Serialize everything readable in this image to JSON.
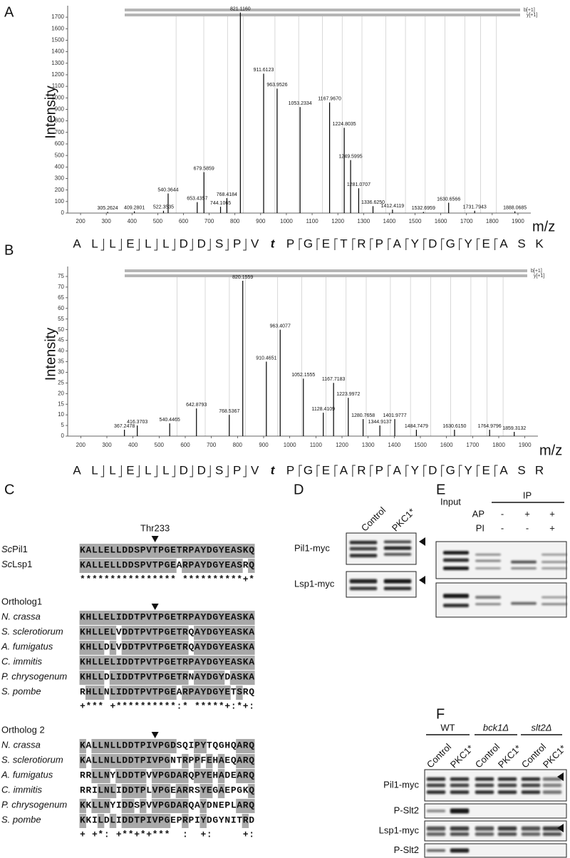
{
  "panels": {
    "A": {
      "label": "A",
      "ylabel": "Intensity",
      "xlabel": "m/z",
      "ion_labels": [
        "b[+1]",
        "y[+1]"
      ],
      "xlim": [
        150,
        1950
      ],
      "xticks": [
        200,
        300,
        400,
        500,
        600,
        700,
        800,
        900,
        1000,
        1100,
        1200,
        1300,
        1400,
        1500,
        1600,
        1700,
        1800,
        1900
      ],
      "ylim": [
        0,
        1750
      ],
      "yticks": [
        0,
        100,
        200,
        300,
        400,
        500,
        600,
        700,
        800,
        900,
        1000,
        1100,
        1200,
        1300,
        1400,
        1500,
        1600,
        1700
      ],
      "peaks": [
        {
          "mz": 305.2624,
          "label": "305.2624",
          "intensity": 10
        },
        {
          "mz": 409.2801,
          "label": "409.2801",
          "intensity": 15
        },
        {
          "mz": 522.3535,
          "label": "522.3535",
          "intensity": 20
        },
        {
          "mz": 540.3644,
          "label": "540.3644",
          "intensity": 170
        },
        {
          "mz": 653.4357,
          "label": "653.4357",
          "intensity": 95
        },
        {
          "mz": 679.5859,
          "label": "679.5859",
          "intensity": 355
        },
        {
          "mz": 744.1065,
          "label": "744.1065",
          "intensity": 55
        },
        {
          "mz": 768.4184,
          "label": "768.4184",
          "intensity": 130
        },
        {
          "mz": 821.116,
          "label": "821.1160",
          "intensity": 1740
        },
        {
          "mz": 911.6123,
          "label": "911.6123",
          "intensity": 1210
        },
        {
          "mz": 963.9526,
          "label": "963.9526",
          "intensity": 1080
        },
        {
          "mz": 1053.2334,
          "label": "1053.2334",
          "intensity": 920
        },
        {
          "mz": 1167.967,
          "label": "1167.9670",
          "intensity": 960
        },
        {
          "mz": 1224.8035,
          "label": "1224.8035",
          "intensity": 740
        },
        {
          "mz": 1249.5995,
          "label": "1249.5995",
          "intensity": 460
        },
        {
          "mz": 1281.0707,
          "label": "1281.0707",
          "intensity": 215
        },
        {
          "mz": 1336.625,
          "label": "1336.6250",
          "intensity": 60
        },
        {
          "mz": 1412.4119,
          "label": "1412.4119",
          "intensity": 30
        },
        {
          "mz": 1532.6959,
          "label": "1532.6959",
          "intensity": 10
        },
        {
          "mz": 1630.6566,
          "label": "1630.6566",
          "intensity": 90
        },
        {
          "mz": 1731.7943,
          "label": "1731.7943",
          "intensity": 20
        },
        {
          "mz": 1888.0685,
          "label": "1888.0685",
          "intensity": 15
        }
      ],
      "sequence": [
        "A",
        "L",
        "L",
        "E",
        "L",
        "L",
        "D",
        "D",
        "S",
        "P",
        "V",
        "t",
        "P",
        "G",
        "E",
        "T",
        "R",
        "P",
        "A",
        "Y",
        "D",
        "G",
        "Y",
        "E",
        "A",
        "S",
        "K"
      ]
    },
    "B": {
      "label": "B",
      "ylabel": "Intensity",
      "xlabel": "m/z",
      "ion_labels": [
        "b[+1]",
        "y[+1]"
      ],
      "xlim": [
        150,
        1950
      ],
      "xticks": [
        200,
        300,
        400,
        500,
        600,
        700,
        800,
        900,
        1000,
        1100,
        1200,
        1300,
        1400,
        1500,
        1600,
        1700,
        1800,
        1900
      ],
      "ylim": [
        0,
        77
      ],
      "yticks": [
        0,
        5,
        10,
        15,
        20,
        25,
        30,
        35,
        40,
        45,
        50,
        55,
        60,
        65,
        70,
        75
      ],
      "peaks": [
        {
          "mz": 367.2478,
          "label": "367.2478",
          "intensity": 3
        },
        {
          "mz": 416.3703,
          "label": "416.3703",
          "intensity": 5
        },
        {
          "mz": 540.4465,
          "label": "540.4465",
          "intensity": 6
        },
        {
          "mz": 642.8793,
          "label": "642.8793",
          "intensity": 13
        },
        {
          "mz": 768.5367,
          "label": "768.5367",
          "intensity": 10
        },
        {
          "mz": 820.1559,
          "label": "820.1559",
          "intensity": 73
        },
        {
          "mz": 910.4651,
          "label": "910.4651",
          "intensity": 35
        },
        {
          "mz": 963.4077,
          "label": "963.4077",
          "intensity": 50
        },
        {
          "mz": 1052.1555,
          "label": "1052.1555",
          "intensity": 27
        },
        {
          "mz": 1128.4109,
          "label": "1128.4109",
          "intensity": 11
        },
        {
          "mz": 1167.7183,
          "label": "1167.7183",
          "intensity": 25
        },
        {
          "mz": 1223.9972,
          "label": "1223.9972",
          "intensity": 18
        },
        {
          "mz": 1280.7658,
          "label": "1280.7658",
          "intensity": 8
        },
        {
          "mz": 1344.9137,
          "label": "1344.9137",
          "intensity": 5
        },
        {
          "mz": 1401.9777,
          "label": "1401.9777",
          "intensity": 8
        },
        {
          "mz": 1484.7479,
          "label": "1484.7479",
          "intensity": 3
        },
        {
          "mz": 1630.615,
          "label": "1630.6150",
          "intensity": 3
        },
        {
          "mz": 1764.9796,
          "label": "1764.9796",
          "intensity": 3
        },
        {
          "mz": 1859.3132,
          "label": "1859.3132",
          "intensity": 2
        }
      ],
      "sequence": [
        "A",
        "L",
        "L",
        "E",
        "L",
        "L",
        "D",
        "D",
        "S",
        "P",
        "V",
        "t",
        "P",
        "G",
        "E",
        "A",
        "R",
        "P",
        "A",
        "Y",
        "D",
        "G",
        "Y",
        "E",
        "A",
        "S",
        "R"
      ]
    },
    "C": {
      "label": "C",
      "marker": "Thr233",
      "blocks": [
        {
          "rows": [
            {
              "prefix": "Sc",
              "name": "Pil1",
              "seq": "KALLELLDDSPVTPGETRPAYDGYEASKQ"
            },
            {
              "prefix": "Sc",
              "name": "Lsp1",
              "seq": "KALLELLDDSPVTPGEARPAYDGYEASRQ"
            }
          ],
          "consensus": "**************** **********+*"
        },
        {
          "heading": "Ortholog1",
          "rows": [
            {
              "name": "N. crassa",
              "seq": "KHLLELIDDTPVTPGETRPAYDGYEASKA"
            },
            {
              "name": "S. sclerotiorum",
              "seq": "KHLLELVDDTPVTPGETRQAYDGYEASKA"
            },
            {
              "name": "A. fumigatus",
              "seq": "KHLLDLVDDTPVTPGETRQAYDGYEASKA"
            },
            {
              "name": "C. immitis",
              "seq": "KHLLELIDDTPVTPGETRPAYDGYEASKA"
            },
            {
              "name": "P. chrysogenum",
              "seq": "KHLLDLIDDTPVTPGETRNAYDGYDASKA"
            },
            {
              "name": "S. pombe",
              "seq": "RHLLNLIDDTPVTPGEARPAYDGYETSRQ"
            }
          ],
          "consensus": "+*** +**********:* *****+:*+:"
        },
        {
          "heading": "Ortholog 2",
          "rows": [
            {
              "name": "N. crassa",
              "seq": "KALLNLLDDTPIVPGDSQIPYTQGHQARQ"
            },
            {
              "name": "S. sclerotiorum",
              "seq": "KALLNLLDDTPIVPGNTRPPFEHAEQARQ"
            },
            {
              "name": "A. fumigatus",
              "seq": "RRLLNYLDDTPVVPGDARQPYEHADEARQ"
            },
            {
              "name": "C. immitis",
              "seq": "RRILNLIDDTPLVPGEARRSYEGAEPGKQ"
            },
            {
              "name": "P. chrysogenum",
              "seq": "KKLLNYIDDSPVVPGDARQAYDNEPLARQ"
            },
            {
              "name": "S. pombe",
              "seq": "KKILDLIDDTPIVPGEPRPIYDGYNITRD"
            }
          ],
          "consensus": "+ +*: +**+*+***  :  +:     +:"
        }
      ]
    },
    "D": {
      "label": "D",
      "lanes": [
        "Control",
        "PKC1*"
      ],
      "rows": [
        "Pil1-myc",
        "Lsp1-myc"
      ]
    },
    "E": {
      "label": "E",
      "input": "Input",
      "ip": "IP",
      "treatments": [
        {
          "name": "AP",
          "signs": [
            "-",
            "+",
            "+"
          ]
        },
        {
          "name": "PI",
          "signs": [
            "-",
            "-",
            "+"
          ]
        }
      ]
    },
    "F": {
      "label": "F",
      "groups": [
        "WT",
        "bck1Δ",
        "slt2Δ"
      ],
      "lanes": [
        "Control",
        "PKC1*",
        "Control",
        "PKC1*",
        "Control",
        "PKC1*"
      ],
      "rows": [
        "Pil1-myc",
        "P-Slt2",
        "Lsp1-myc",
        "P-Slt2"
      ]
    }
  }
}
